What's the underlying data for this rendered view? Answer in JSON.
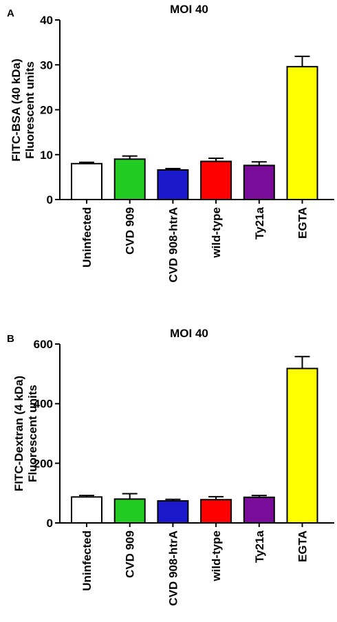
{
  "chart_data": [
    {
      "type": "bar",
      "panel_label": "A",
      "title": "MOI 40",
      "ylabel_line1": "FITC-BSA (40 kDa)",
      "ylabel_line2": "Fluorescent units",
      "ylim": [
        0,
        40
      ],
      "yticks": [
        0,
        10,
        20,
        30,
        40
      ],
      "categories": [
        "Uninfected",
        "CVD 909",
        "CVD 908-htrA",
        "wild-type",
        "Ty21a",
        "EGTA"
      ],
      "values": [
        8.0,
        9.0,
        6.6,
        8.5,
        7.6,
        29.6
      ],
      "errors": [
        0.3,
        0.7,
        0.3,
        0.7,
        0.8,
        2.3
      ],
      "colors": [
        "#ffffff",
        "#22cc22",
        "#1a1acc",
        "#ff0000",
        "#7a0c9a",
        "#ffff00"
      ]
    },
    {
      "type": "bar",
      "panel_label": "B",
      "title": "MOI 40",
      "ylabel_line1": "FITC-Dextran (4 kDa)",
      "ylabel_line2": "Fluorescent units",
      "ylim": [
        0,
        600
      ],
      "yticks": [
        0,
        200,
        400,
        600
      ],
      "categories": [
        "Uninfected",
        "CVD 909",
        "CVD 908-htrA",
        "wild-type",
        "Ty21a",
        "EGTA"
      ],
      "values": [
        87,
        80,
        74,
        78,
        86,
        518
      ],
      "errors": [
        5,
        18,
        5,
        10,
        6,
        40
      ],
      "colors": [
        "#ffffff",
        "#22cc22",
        "#1a1acc",
        "#ff0000",
        "#7a0c9a",
        "#ffff00"
      ]
    }
  ]
}
